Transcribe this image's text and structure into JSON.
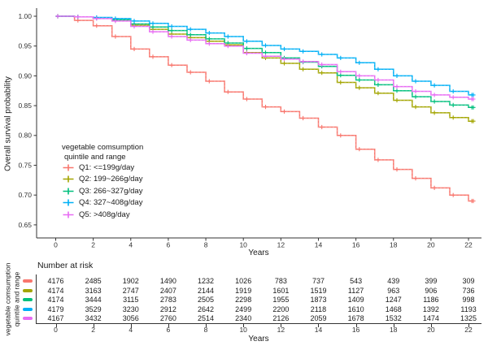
{
  "figure": {
    "ylabel": "Overall survival probability",
    "xlabel": "Years",
    "y_ticks": [
      1.0,
      0.95,
      0.9,
      0.85,
      0.8,
      0.75,
      0.7,
      0.65
    ],
    "x_ticks": [
      0,
      2,
      4,
      6,
      8,
      10,
      12,
      14,
      16,
      18,
      20,
      22
    ],
    "axis_color": "#333333"
  },
  "legend": {
    "title_line1": "vegetable comsumption",
    "title_line2": "quintile and range",
    "items": [
      {
        "label": "Q1: <=199g/day",
        "color": "#F8766D"
      },
      {
        "label": "Q2: 199~266g/day",
        "color": "#A3A500"
      },
      {
        "label": "Q3: 266~327g/day",
        "color": "#00BF7D"
      },
      {
        "label": "Q4: 327~408g/day",
        "color": "#00B0F6"
      },
      {
        "label": "Q5: >408g/day",
        "color": "#E76BF3"
      }
    ]
  },
  "chart_data": {
    "type": "line",
    "subtype": "kaplan-meier-step",
    "title": "",
    "xlabel": "Years",
    "ylabel": "Overall survival probability",
    "x": [
      0,
      1,
      2,
      3,
      4,
      5,
      6,
      7,
      8,
      9,
      10,
      11,
      12,
      13,
      14,
      15,
      16,
      17,
      18,
      19,
      20,
      21,
      22
    ],
    "xlim": [
      0,
      22
    ],
    "ylim": [
      0.65,
      1.0
    ],
    "grid": false,
    "legend_position": "inside-left-bottom",
    "series": [
      {
        "name": "Q1: <=199g/day",
        "color": "#F8766D",
        "values": [
          1.0,
          0.993,
          0.984,
          0.966,
          0.945,
          0.932,
          0.918,
          0.906,
          0.891,
          0.873,
          0.861,
          0.848,
          0.84,
          0.829,
          0.814,
          0.8,
          0.777,
          0.759,
          0.743,
          0.728,
          0.712,
          0.7,
          0.69
        ]
      },
      {
        "name": "Q2: 199~266g/day",
        "color": "#A3A500",
        "values": [
          1.0,
          0.999,
          0.997,
          0.993,
          0.985,
          0.978,
          0.97,
          0.964,
          0.958,
          0.952,
          0.939,
          0.93,
          0.921,
          0.911,
          0.905,
          0.889,
          0.88,
          0.871,
          0.859,
          0.848,
          0.838,
          0.83,
          0.824
        ]
      },
      {
        "name": "Q3: 266~327g/day",
        "color": "#00BF7D",
        "values": [
          1.0,
          0.999,
          0.997,
          0.994,
          0.987,
          0.982,
          0.976,
          0.969,
          0.962,
          0.955,
          0.946,
          0.939,
          0.93,
          0.923,
          0.916,
          0.901,
          0.893,
          0.885,
          0.875,
          0.865,
          0.857,
          0.851,
          0.847
        ]
      },
      {
        "name": "Q4: 327~408g/day",
        "color": "#00B0F6",
        "values": [
          1.0,
          0.999,
          0.998,
          0.996,
          0.992,
          0.988,
          0.983,
          0.978,
          0.972,
          0.966,
          0.958,
          0.951,
          0.945,
          0.941,
          0.936,
          0.93,
          0.922,
          0.911,
          0.9,
          0.891,
          0.884,
          0.874,
          0.868
        ]
      },
      {
        "name": "Q5: >408g/day",
        "color": "#E76BF3",
        "values": [
          1.0,
          0.999,
          0.996,
          0.992,
          0.983,
          0.974,
          0.966,
          0.96,
          0.954,
          0.95,
          0.938,
          0.933,
          0.928,
          0.924,
          0.919,
          0.907,
          0.9,
          0.893,
          0.882,
          0.874,
          0.868,
          0.864,
          0.861
        ]
      }
    ]
  },
  "risk_table": {
    "title": "Number at risk",
    "axis_label_line1": "vegetable comsumption",
    "axis_label_line2": "quintile and range",
    "xlabel": "Years",
    "x_ticks": [
      0,
      2,
      4,
      6,
      8,
      10,
      12,
      14,
      16,
      18,
      20,
      22
    ],
    "rows": [
      {
        "name": "Q1",
        "color": "#F8766D",
        "counts": [
          4176,
          2485,
          1902,
          1490,
          1232,
          1026,
          783,
          737,
          543,
          439,
          399,
          309
        ]
      },
      {
        "name": "Q2",
        "color": "#A3A500",
        "counts": [
          4174,
          3163,
          2747,
          2407,
          2144,
          1919,
          1601,
          1519,
          1127,
          963,
          906,
          736
        ]
      },
      {
        "name": "Q3",
        "color": "#00BF7D",
        "counts": [
          4174,
          3444,
          3115,
          2783,
          2505,
          2298,
          1955,
          1873,
          1409,
          1247,
          1186,
          998
        ]
      },
      {
        "name": "Q4",
        "color": "#00B0F6",
        "counts": [
          4179,
          3529,
          3230,
          2912,
          2642,
          2499,
          2200,
          2118,
          1610,
          1468,
          1392,
          1193
        ]
      },
      {
        "name": "Q5",
        "color": "#E76BF3",
        "counts": [
          4167,
          3432,
          3056,
          2760,
          2514,
          2340,
          2126,
          2059,
          1678,
          1532,
          1474,
          1325
        ]
      }
    ]
  }
}
